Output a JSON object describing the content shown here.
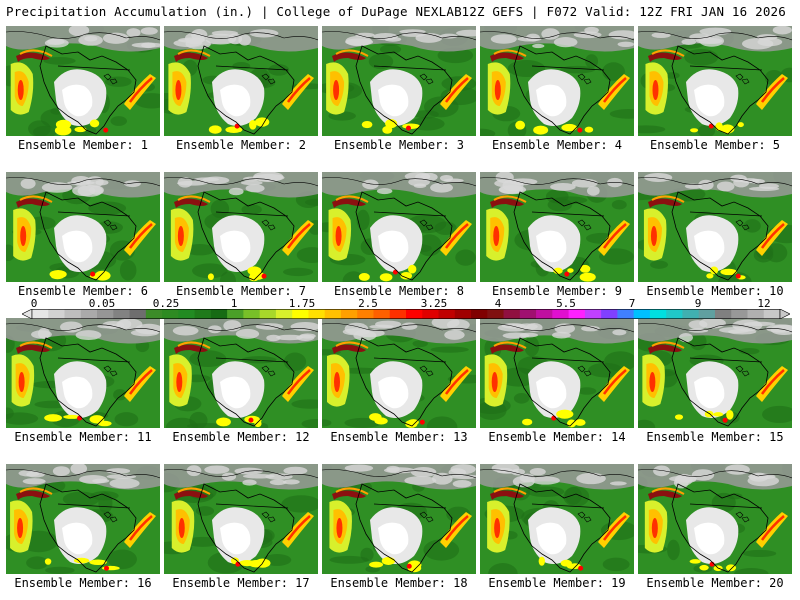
{
  "header": {
    "title_left": "Precipitation Accumulation (in.) | College of DuPage NEXLAB",
    "title_right": "12Z GEFS | F072 Valid: 12Z FRI JAN 16 2026"
  },
  "panels": [
    {
      "caption": "Ensemble Member: 1"
    },
    {
      "caption": "Ensemble Member: 2"
    },
    {
      "caption": "Ensemble Member: 3"
    },
    {
      "caption": "Ensemble Member: 4"
    },
    {
      "caption": "Ensemble Member: 5"
    },
    {
      "caption": "Ensemble Member: 6"
    },
    {
      "caption": "Ensemble Member: 7"
    },
    {
      "caption": "Ensemble Member: 8"
    },
    {
      "caption": "Ensemble Member: 9"
    },
    {
      "caption": "Ensemble Member: 10"
    },
    {
      "caption": "Ensemble Member: 11"
    },
    {
      "caption": "Ensemble Member: 12"
    },
    {
      "caption": "Ensemble Member: 13"
    },
    {
      "caption": "Ensemble Member: 14"
    },
    {
      "caption": "Ensemble Member: 15"
    },
    {
      "caption": "Ensemble Member: 16"
    },
    {
      "caption": "Ensemble Member: 17"
    },
    {
      "caption": "Ensemble Member: 18"
    },
    {
      "caption": "Ensemble Member: 19"
    },
    {
      "caption": "Ensemble Member: 20"
    }
  ],
  "legend": {
    "labels": [
      "0",
      "0.05",
      "0.25",
      "1",
      "1.75",
      "2.5",
      "3.25",
      "4",
      "5.5",
      "7",
      "9",
      "12"
    ],
    "colors": [
      "#e6e6e6",
      "#d2d2d2",
      "#bebebe",
      "#aaaaaa",
      "#969696",
      "#828282",
      "#6e6e6e",
      "#3c8c28",
      "#2e8b22",
      "#228b22",
      "#1f7a1a",
      "#176b14",
      "#4aa028",
      "#78c028",
      "#a8d82a",
      "#d8f02c",
      "#ffff00",
      "#ffe000",
      "#ffc000",
      "#ffa000",
      "#ff8000",
      "#ff6000",
      "#ff3000",
      "#ff0000",
      "#e00000",
      "#c00000",
      "#a00000",
      "#800000",
      "#801010",
      "#901040",
      "#a01070",
      "#c010a0",
      "#e010d0",
      "#ff20ff",
      "#c040ff",
      "#8040ff",
      "#4080ff",
      "#00c0ff",
      "#00e0e0",
      "#20c8c8",
      "#40b0b0",
      "#60a0a0",
      "#808080",
      "#989898",
      "#b0b0b0",
      "#c8c8c8"
    ]
  }
}
